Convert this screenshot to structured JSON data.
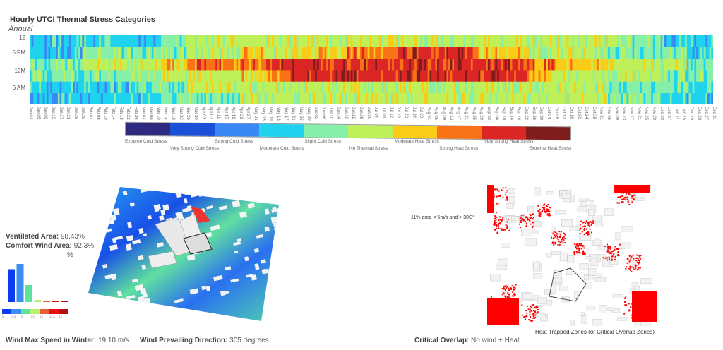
{
  "heatmap": {
    "title": "Hourly UTCI Thermal Stress Categories",
    "subtitle": "Annual",
    "y_ticks": [
      "12",
      "6 PM",
      "12M",
      "6 AM"
    ]
  },
  "chart_data": {
    "type": "heatmap",
    "title": "Hourly UTCI Thermal Stress Categories",
    "subtitle": "Annual",
    "x_ticks": [
      "Jan 01",
      "Jan 05",
      "Jan 09",
      "Jan 13",
      "Jan 17",
      "Jan 21",
      "Jan 25",
      "Jan 29",
      "Feb 02",
      "Feb 06",
      "Feb 10",
      "Feb 14",
      "Feb 18",
      "Feb 22",
      "Feb 26",
      "Mar 02",
      "Mar 06",
      "Mar 10",
      "Mar 14",
      "Mar 18",
      "Mar 22",
      "Mar 26",
      "Mar 30",
      "Apr 03",
      "Apr 07",
      "Apr 11",
      "Apr 15",
      "Apr 19",
      "Apr 23",
      "Apr 27",
      "May 01",
      "May 05",
      "May 09",
      "May 13",
      "May 17",
      "May 21",
      "May 25",
      "May 29",
      "Jun 02",
      "Jun 06",
      "Jun 10",
      "Jun 14",
      "Jun 18",
      "Jun 22",
      "Jun 26",
      "Jun 30",
      "Jul 04",
      "Jul 08",
      "Jul 12",
      "Jul 16",
      "Jul 20",
      "Jul 24",
      "Jul 28",
      "Aug 01",
      "Aug 05",
      "Aug 09",
      "Aug 13",
      "Aug 17",
      "Aug 21",
      "Aug 25",
      "Aug 29",
      "Sep 02",
      "Sep 06",
      "Sep 10",
      "Sep 14",
      "Sep 18",
      "Sep 22",
      "Sep 26",
      "Sep 30",
      "Oct 04",
      "Oct 08",
      "Oct 12",
      "Oct 16",
      "Oct 20",
      "Oct 24",
      "Oct 28",
      "Nov 01",
      "Nov 05",
      "Nov 09",
      "Nov 13",
      "Nov 17",
      "Nov 21",
      "Nov 25",
      "Nov 29",
      "Dec 03",
      "Dec 07",
      "Dec 11",
      "Dec 15",
      "Dec 19",
      "Dec 23",
      "Dec 27",
      "Dec 31"
    ],
    "y_ticks": [
      "12",
      "6 PM",
      "12M",
      "6 AM"
    ],
    "categories": [
      "Extreme Cold Stress",
      "Very Strong Cold Stress",
      "Strong Cold Stress",
      "Moderate Cold Stress",
      "Slight Cold Stress",
      "No Thermal Stress",
      "Moderate Heat Stress",
      "Strong Heat Stress",
      "Very Strong Heat Stress",
      "Extreme Heat Stress"
    ],
    "colors": [
      "#2e2a80",
      "#1a4fd8",
      "#3a88f5",
      "#1fd3ee",
      "#86efa8",
      "#bef05a",
      "#fbcc17",
      "#f97316",
      "#dc2626",
      "#7f1d1d"
    ],
    "weekly_category_by_4h_block_bottom_to_top": [
      "334433",
      "334433",
      "334433",
      "334433",
      "334543",
      "334543",
      "334543",
      "334543",
      "344543",
      "344543",
      "445644",
      "445644",
      "455755",
      "455755",
      "455755",
      "455755",
      "556765",
      "556765",
      "557855",
      "557855",
      "558865",
      "558865",
      "558865",
      "558865",
      "558875",
      "558875",
      "558875",
      "558875",
      "558885",
      "558885",
      "558885",
      "558885",
      "558885",
      "558885",
      "558865",
      "558865",
      "558865",
      "558865",
      "556755",
      "556755",
      "555655",
      "555655",
      "555655",
      "555655",
      "445544",
      "445544",
      "445544",
      "445544",
      "344543",
      "344543",
      "334433",
      "334433"
    ]
  },
  "wind": {
    "ventilated_label": "Ventilated Area:",
    "ventilated_value": "98.43%",
    "comfort_label": "Comfort Wind Area:",
    "comfort_value": "92.3%",
    "third_value": "%",
    "bars": [
      0.62,
      0.72,
      0.32,
      0.04,
      0.01,
      0.01,
      0.01
    ],
    "bar_colors": [
      "#0a3cf0",
      "#3a8ef0",
      "#5fe39a",
      "#b8f070",
      "#e8603a",
      "#e81010",
      "#b01010"
    ],
    "scale_ticks": [
      "0",
      "2.5",
      "5",
      "7.5",
      "10",
      "12.5",
      "15"
    ],
    "max_speed_label": "Wind Max Speed in Winter:",
    "max_speed_value": "19.10 m/s",
    "direction_label": "Wind Prevailing Direction:",
    "direction_value": "305 degrees"
  },
  "heat_zones": {
    "annotation": "11% area < 5m/s and > 30C°",
    "caption": "Heat Trapped Zones (or Critical Overlap Zones)",
    "overlap_label": "Critical Overlap:",
    "overlap_value": "No wind + Heat"
  }
}
